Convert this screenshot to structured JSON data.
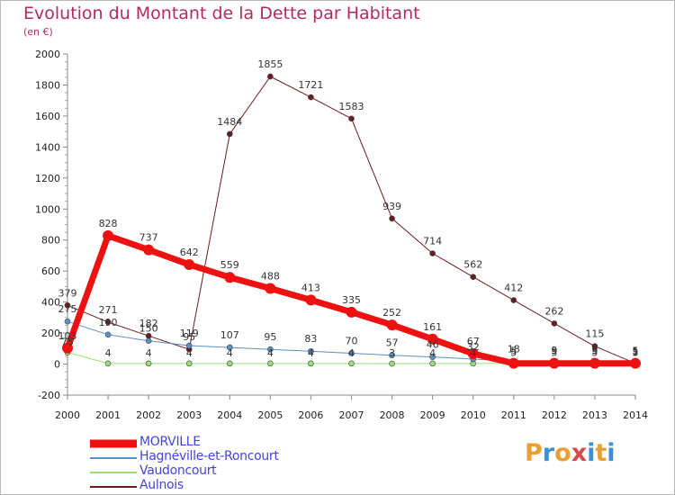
{
  "header": {
    "title": "Evolution du Montant de la Dette par Habitant",
    "subtitle": "(en €)"
  },
  "logo": {
    "text": "Proxiti",
    "colors": [
      "#e8a033",
      "#3d8fd6",
      "#e8a033",
      "#d44a4a",
      "#3d8fd6",
      "#e8a033",
      "#3d8fd6"
    ]
  },
  "chart_data": {
    "type": "line",
    "x": [
      "2000",
      "2001",
      "2002",
      "2003",
      "2004",
      "2005",
      "2006",
      "2007",
      "2008",
      "2009",
      "2010",
      "2011",
      "2012",
      "2013",
      "2014"
    ],
    "ylim": [
      -200,
      2000
    ],
    "yticks": [
      "-200",
      "0",
      "200",
      "400",
      "600",
      "800",
      "1000",
      "1200",
      "1400",
      "1600",
      "1800",
      "2000"
    ],
    "grid": false,
    "legend_position": "bottom-left",
    "series": [
      {
        "name": "MORVILLE",
        "color": "#ee1111",
        "values": [
          103,
          828,
          737,
          642,
          559,
          488,
          413,
          335,
          252,
          161,
          67,
          5,
          5,
          5,
          5
        ],
        "labels": [
          "103",
          "828",
          "737",
          "642",
          "559",
          "488",
          "413",
          "335",
          "252",
          "161",
          "67",
          "5",
          "5",
          "5",
          "5"
        ]
      },
      {
        "name": "Hagnéville-et-Roncourt",
        "color": "#5b8fc7",
        "values": [
          275,
          190,
          150,
          119,
          107,
          95,
          83,
          70,
          57,
          46,
          32,
          18,
          9,
          9,
          1
        ],
        "labels": [
          "275",
          "190",
          "150",
          "119",
          "107",
          "95",
          "83",
          "70",
          "57",
          "46",
          "32",
          "18",
          "9",
          "9",
          "1"
        ]
      },
      {
        "name": "Vaudoncourt",
        "color": "#99dd77",
        "values": [
          75,
          4,
          4,
          4,
          4,
          4,
          4,
          4,
          3,
          4,
          4,
          5,
          5,
          5,
          5
        ],
        "labels": [
          "75",
          "4",
          "4",
          "4",
          "4",
          "4",
          "4",
          "4",
          "3",
          "4",
          "4",
          "5",
          "5",
          "5",
          "5"
        ]
      },
      {
        "name": "Aulnois",
        "color": "#6b1a22",
        "values": [
          379,
          271,
          182,
          95,
          1484,
          1855,
          1721,
          1583,
          939,
          714,
          562,
          412,
          262,
          115,
          5
        ],
        "labels": [
          "379",
          "271",
          "182",
          "95",
          "1484",
          "1855",
          "1721",
          "1583",
          "939",
          "714",
          "562",
          "412",
          "262",
          "115",
          "5"
        ]
      }
    ]
  }
}
